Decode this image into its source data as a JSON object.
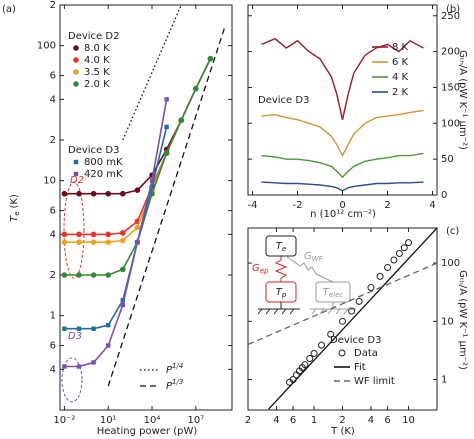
{
  "chart_data": [
    {
      "type": "scatter",
      "panel_label": "(a)",
      "xlabel": "Heating power (pW)",
      "ylabel": {
        "symbol": "T",
        "sub": "e",
        "unit": "(K)"
      },
      "xlog": true,
      "ylog": true,
      "xlim": [
        0.005,
        3000000000
      ],
      "ylim": [
        0.2,
        200
      ],
      "xticks": [
        {
          "value": 0.01,
          "label": "10⁻²"
        },
        {
          "value": 10,
          "label": "10¹"
        },
        {
          "value": 10000,
          "label": "10⁴"
        },
        {
          "value": 10000000,
          "label": "10⁷"
        }
      ],
      "yticks": [
        {
          "value": 0.4,
          "label": "4"
        },
        {
          "value": 0.6,
          "label": "6"
        },
        1,
        2,
        4,
        6,
        10,
        {
          "value": 20,
          "label": "2"
        },
        {
          "value": 40,
          "label": "4"
        },
        {
          "value": 60,
          "label": "6"
        },
        100,
        {
          "value": 200,
          "label": "2"
        }
      ],
      "groups": [
        {
          "title": "Device D2",
          "marker": "circle",
          "series": [
            {
              "name": "8.0 K",
              "color": "#6b0f1a",
              "x": [
                0.01,
                0.1,
                1,
                10,
                100,
                1000,
                10000,
                100000,
                1000000,
                10000000,
                100000000
              ],
              "values": [
                8,
                8,
                8,
                8,
                8,
                8.5,
                11,
                17,
                28,
                48,
                80
              ]
            },
            {
              "name": "4.0 K",
              "color": "#e8332a",
              "x": [
                0.01,
                0.1,
                1,
                10,
                100,
                1000,
                10000,
                100000,
                1000000,
                10000000,
                100000000
              ],
              "values": [
                4,
                4,
                4,
                4,
                4.1,
                5,
                9,
                16,
                28,
                48,
                80
              ]
            },
            {
              "name": "3.5 K",
              "color": "#f0a020",
              "x": [
                0.01,
                0.1,
                1,
                10,
                100,
                1000,
                10000,
                100000,
                1000000,
                10000000,
                100000000
              ],
              "values": [
                3.5,
                3.5,
                3.5,
                3.5,
                3.6,
                4.5,
                8.5,
                16,
                28,
                48,
                80
              ]
            },
            {
              "name": "2.0 K",
              "color": "#2f8a3a",
              "x": [
                0.01,
                0.1,
                1,
                10,
                100,
                1000,
                10000,
                100000,
                1000000,
                10000000,
                100000000
              ],
              "values": [
                2,
                2,
                2,
                2,
                2.2,
                3.5,
                8,
                16,
                28,
                48,
                80
              ]
            }
          ]
        },
        {
          "title": "Device D3",
          "marker": "square",
          "series": [
            {
              "name": "800 mK",
              "color": "#1f6fa3",
              "x": [
                0.01,
                0.1,
                1,
                10,
                100,
                1000,
                10000,
                100000
              ],
              "values": [
                0.8,
                0.8,
                0.8,
                0.85,
                1.3,
                3.5,
                9,
                25
              ]
            },
            {
              "name": "420 mK",
              "color": "#7c4fb0",
              "x": [
                0.01,
                0.1,
                1,
                10,
                100,
                1000,
                10000,
                100000
              ],
              "values": [
                0.42,
                0.42,
                0.45,
                0.6,
                1.2,
                3.5,
                10,
                40
              ]
            }
          ]
        }
      ],
      "reference_lines": [
        {
          "base": "P",
          "exp": "1/4",
          "dash": "dotted",
          "x": [
            100,
            1000000
          ],
          "values": [
            20,
            200
          ]
        },
        {
          "base": "P",
          "exp": "1/3",
          "dash": "dashed",
          "x": [
            10,
            1000000000
          ],
          "values": [
            0.3,
            139
          ]
        }
      ],
      "annotations": [
        "D2",
        "D3"
      ]
    },
    {
      "type": "line",
      "panel_label": "(b)",
      "title": "Device D3",
      "xlabel": "n (10¹² cm⁻²)",
      "ylabel": "Gₜₕ/A (pW K⁻¹ μm⁻²)",
      "yaxis": "right",
      "xlim": [
        -4.2,
        4.2
      ],
      "ylim": [
        0,
        265
      ],
      "xticks": [
        -4,
        -2,
        0,
        2,
        4
      ],
      "yticks": [
        0,
        50,
        100,
        150,
        200,
        250
      ],
      "x": [
        -3.6,
        -3,
        -2.5,
        -2,
        -1.5,
        -1,
        -0.5,
        -0.25,
        0,
        0.25,
        0.5,
        1,
        1.5,
        2,
        2.5,
        3,
        3.6
      ],
      "series": [
        {
          "name": "8 K",
          "color": "#9b1b20",
          "values": [
            210,
            218,
            205,
            215,
            200,
            190,
            165,
            140,
            105,
            140,
            170,
            195,
            205,
            210,
            200,
            215,
            205
          ]
        },
        {
          "name": "6 K",
          "color": "#d4952f",
          "values": [
            110,
            112,
            108,
            105,
            100,
            95,
            82,
            70,
            55,
            70,
            85,
            100,
            108,
            110,
            112,
            115,
            118
          ]
        },
        {
          "name": "4 K",
          "color": "#4a9a3a",
          "values": [
            55,
            53,
            50,
            50,
            48,
            45,
            40,
            33,
            25,
            33,
            40,
            47,
            50,
            52,
            55,
            55,
            58
          ]
        },
        {
          "name": "2 K",
          "color": "#2a4d8f",
          "values": [
            18,
            17,
            16,
            16,
            15,
            14,
            12,
            10,
            6,
            10,
            12,
            14,
            16,
            16,
            17,
            17,
            18
          ]
        }
      ]
    },
    {
      "type": "line",
      "panel_label": "(c)",
      "legend_title": "Device D3",
      "xlabel": "T (K)",
      "ylabel": "Gₜₕ/A (pW K⁻¹ μm⁻²)",
      "yaxis": "right",
      "xlog": true,
      "ylog": true,
      "xlim": [
        0.2,
        20
      ],
      "ylim": [
        0.3,
        400
      ],
      "xticks": [
        {
          "value": 0.2,
          "label": "2"
        },
        {
          "value": 0.4,
          "label": "4"
        },
        {
          "value": 0.6,
          "label": "6"
        },
        1,
        2,
        4,
        6,
        10
      ],
      "yticks": [
        1,
        10,
        100
      ],
      "series": [
        {
          "name": "Data",
          "mode": "markers",
          "color": "#222222",
          "x": [
            0.55,
            0.6,
            0.65,
            0.7,
            0.75,
            0.8,
            0.9,
            1,
            1.2,
            1.5,
            2,
            2.5,
            3,
            4,
            5,
            6,
            7,
            8,
            9,
            10
          ],
          "values": [
            0.9,
            1,
            1.2,
            1.4,
            1.6,
            1.8,
            2.3,
            2.8,
            3.9,
            6,
            10,
            15,
            22,
            38,
            59,
            84,
            113,
            146,
            183,
            224
          ]
        },
        {
          "name": "Fit",
          "mode": "line",
          "dash": "solid",
          "color": "#111111",
          "x": [
            0.33,
            20
          ],
          "values": [
            0.31,
            400
          ]
        },
        {
          "name": "WF limit",
          "mode": "line",
          "dash": "dashed",
          "color": "#666666",
          "x": [
            0.2,
            20
          ],
          "values": [
            4,
            100
          ]
        }
      ],
      "inset": {
        "nodes": [
          {
            "symbol": "T",
            "sub": "e"
          },
          {
            "symbol": "T",
            "sub": "p"
          },
          {
            "symbol": "T",
            "sub": "elec"
          }
        ],
        "links": [
          {
            "symbol": "G",
            "sub": "ep"
          },
          {
            "symbol": "G",
            "sub": "WF"
          }
        ]
      }
    }
  ]
}
